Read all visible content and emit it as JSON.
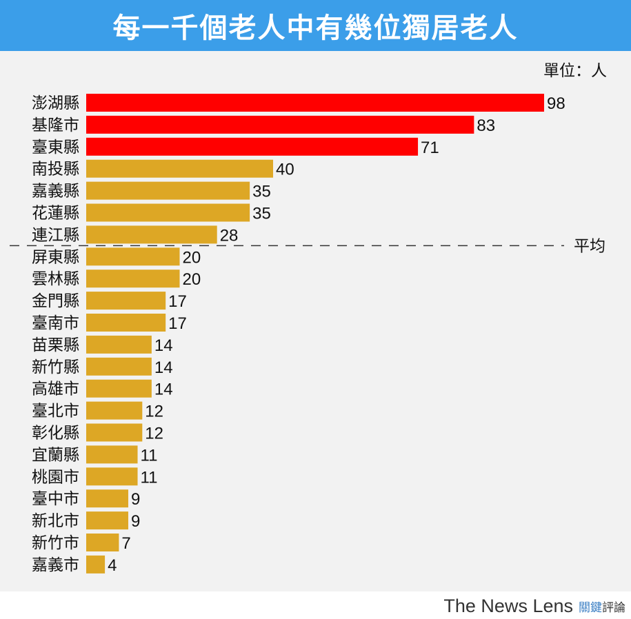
{
  "title": "每一千個老人中有幾位獨居老人",
  "brand": {
    "english": "The News Lens",
    "chinese_a": "關鍵",
    "chinese_b": "評論"
  },
  "colors": {
    "banner": "#3b9ee9",
    "highlight": "#ff0000",
    "normal": "#dda725",
    "panel": "#f2f2f2"
  },
  "chart_data": {
    "type": "bar",
    "orientation": "horizontal",
    "unit_label": "單位：人",
    "average_label": "平均",
    "average_line_after_category": "連江縣",
    "categories": [
      "澎湖縣",
      "基隆市",
      "臺東縣",
      "南投縣",
      "嘉義縣",
      "花蓮縣",
      "連江縣",
      "屏東縣",
      "雲林縣",
      "金門縣",
      "臺南市",
      "苗栗縣",
      "新竹縣",
      "高雄市",
      "臺北市",
      "彰化縣",
      "宜蘭縣",
      "桃園市",
      "臺中市",
      "新北市",
      "新竹市",
      "嘉義市"
    ],
    "values": [
      98,
      83,
      71,
      40,
      35,
      35,
      28,
      20,
      20,
      17,
      17,
      14,
      14,
      14,
      12,
      12,
      11,
      11,
      9,
      9,
      7,
      4
    ],
    "highlighted_categories": [
      "澎湖縣",
      "基隆市",
      "臺東縣"
    ],
    "xlim": [
      0,
      98
    ]
  }
}
